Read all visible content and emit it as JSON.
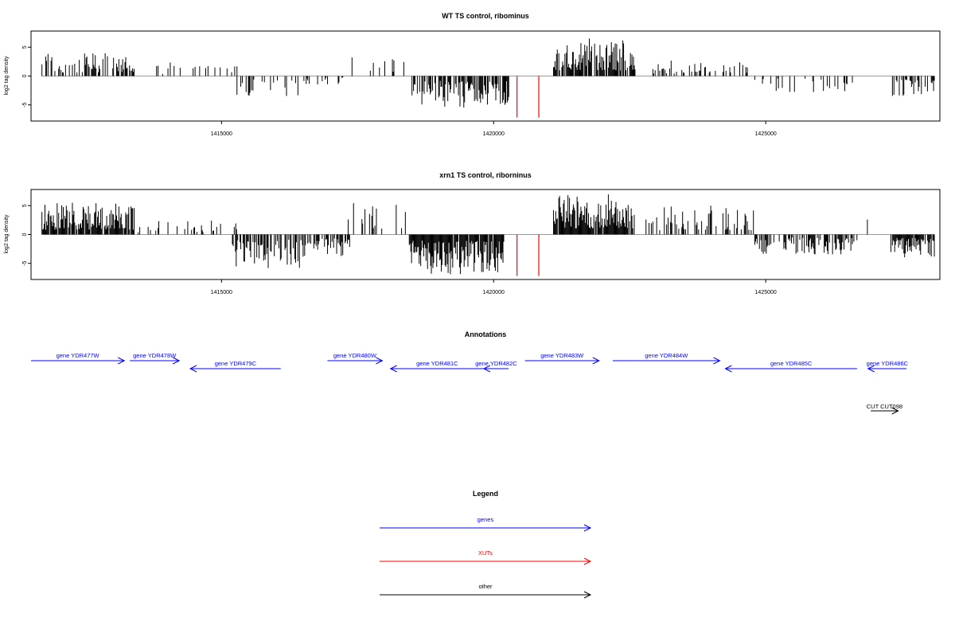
{
  "colors": {
    "gene": "#0000ff",
    "xut": "#ff0000",
    "other": "#000000",
    "signal": "#000000",
    "zero_line": "#999999"
  },
  "chart_data": [
    {
      "type": "bar",
      "title": "WT TS control, ribominus",
      "ylabel": "log2 tag density",
      "xlim": [
        1411500,
        1428200
      ],
      "ylim": [
        -7.8,
        7.8
      ],
      "xticks": [
        1415000,
        1420000,
        1425000
      ],
      "xtick_labels": [
        "1415000",
        "1420000",
        "1425000"
      ],
      "yticks": [
        5,
        0,
        -5
      ],
      "ytick_labels": [
        "5",
        "0",
        "-5"
      ],
      "signal_segments": [
        {
          "from": 1411700,
          "to": 1413400,
          "sign": 1,
          "max": 4,
          "density": 0.45
        },
        {
          "from": 1413400,
          "to": 1414500,
          "sign": 1,
          "max": 2.5,
          "density": 0.12
        },
        {
          "from": 1414500,
          "to": 1415300,
          "sign": 1,
          "max": 2,
          "density": 0.1
        },
        {
          "from": 1415200,
          "to": 1416500,
          "sign": -1,
          "max": 3.5,
          "density": 0.25
        },
        {
          "from": 1416500,
          "to": 1417300,
          "sign": -1,
          "max": 1.5,
          "density": 0.25
        },
        {
          "from": 1417300,
          "to": 1418500,
          "sign": 1,
          "max": 3.5,
          "density": 0.08
        },
        {
          "from": 1418500,
          "to": 1420300,
          "sign": -1,
          "max": 5.5,
          "density": 0.55
        },
        {
          "from": 1421100,
          "to": 1422600,
          "sign": 1,
          "max": 6.5,
          "density": 0.8
        },
        {
          "from": 1422800,
          "to": 1424700,
          "sign": 1,
          "max": 3,
          "density": 0.25
        },
        {
          "from": 1424800,
          "to": 1426700,
          "sign": -1,
          "max": 3,
          "density": 0.18
        },
        {
          "from": 1426700,
          "to": 1427400,
          "sign": 1,
          "max": 2.5,
          "density": 0.05
        },
        {
          "from": 1427300,
          "to": 1428100,
          "sign": -1,
          "max": 3.5,
          "density": 0.45
        }
      ],
      "highlight_bars": [
        {
          "x": 1420430,
          "y": -7.2
        },
        {
          "x": 1420830,
          "y": -7.2
        }
      ]
    },
    {
      "type": "bar",
      "title": "xrn1 TS control, riborninus",
      "ylabel": "log2 tag density",
      "xlim": [
        1411500,
        1428200
      ],
      "ylim": [
        -7.8,
        7.8
      ],
      "xticks": [
        1415000,
        1420000,
        1425000
      ],
      "xtick_labels": [
        "1415000",
        "1420000",
        "1425000"
      ],
      "yticks": [
        5,
        0,
        -5
      ],
      "ytick_labels": [
        "5",
        "0",
        "-5"
      ],
      "signal_segments": [
        {
          "from": 1411700,
          "to": 1413400,
          "sign": 1,
          "max": 5.5,
          "density": 0.85
        },
        {
          "from": 1413400,
          "to": 1415300,
          "sign": 1,
          "max": 2.5,
          "density": 0.2
        },
        {
          "from": 1415200,
          "to": 1416500,
          "sign": -1,
          "max": 6,
          "density": 0.65
        },
        {
          "from": 1416500,
          "to": 1417400,
          "sign": -1,
          "max": 4,
          "density": 0.6
        },
        {
          "from": 1417300,
          "to": 1418500,
          "sign": 1,
          "max": 5.5,
          "density": 0.2
        },
        {
          "from": 1418450,
          "to": 1420200,
          "sign": -1,
          "max": 7,
          "density": 0.95
        },
        {
          "from": 1421100,
          "to": 1422600,
          "sign": 1,
          "max": 7,
          "density": 0.95
        },
        {
          "from": 1422800,
          "to": 1424800,
          "sign": 1,
          "max": 5,
          "density": 0.4
        },
        {
          "from": 1424800,
          "to": 1426700,
          "sign": -1,
          "max": 3.5,
          "density": 0.55
        },
        {
          "from": 1426700,
          "to": 1427400,
          "sign": 1,
          "max": 3,
          "density": 0.08
        },
        {
          "from": 1427300,
          "to": 1428100,
          "sign": -1,
          "max": 4,
          "density": 0.85
        }
      ],
      "highlight_bars": [
        {
          "x": 1420430,
          "y": -7.2
        },
        {
          "x": 1420830,
          "y": -7.2
        }
      ]
    }
  ],
  "annotations": {
    "title": "Annotations",
    "genes": [
      {
        "label": "gene YDR477W",
        "start": 1410900,
        "end": 1412600,
        "dir": "forward",
        "row": 0
      },
      {
        "label": "gene YDR478W",
        "start": 1412700,
        "end": 1413600,
        "dir": "forward",
        "row": 0
      },
      {
        "label": "gene YDR479C",
        "start": 1413800,
        "end": 1415450,
        "dir": "reverse",
        "row": 1
      },
      {
        "label": "gene YDR480W",
        "start": 1416300,
        "end": 1417300,
        "dir": "forward",
        "row": 0
      },
      {
        "label": "gene YDR481C",
        "start": 1417450,
        "end": 1419150,
        "dir": "reverse",
        "row": 1
      },
      {
        "label": "gene YDR482C",
        "start": 1419150,
        "end": 1419600,
        "dir": "reverse",
        "row": 1
      },
      {
        "label": "gene YDR483W",
        "start": 1419900,
        "end": 1421250,
        "dir": "forward",
        "row": 0
      },
      {
        "label": "gene YDR484W",
        "start": 1421500,
        "end": 1423450,
        "dir": "forward",
        "row": 0
      },
      {
        "label": "gene YDR485C",
        "start": 1423550,
        "end": 1425950,
        "dir": "reverse",
        "row": 1
      },
      {
        "label": "gene YDR486C",
        "start": 1426150,
        "end": 1426850,
        "dir": "reverse",
        "row": 1
      }
    ],
    "other": [
      {
        "label": "CUT CUT098",
        "start": 1426200,
        "end": 1426700,
        "dir": "forward"
      }
    ]
  },
  "legend": {
    "title": "Legend",
    "items": [
      {
        "label": "genes",
        "kind": "gene"
      },
      {
        "label": "XUTs",
        "kind": "xut"
      },
      {
        "label": "other",
        "kind": "other"
      }
    ]
  }
}
